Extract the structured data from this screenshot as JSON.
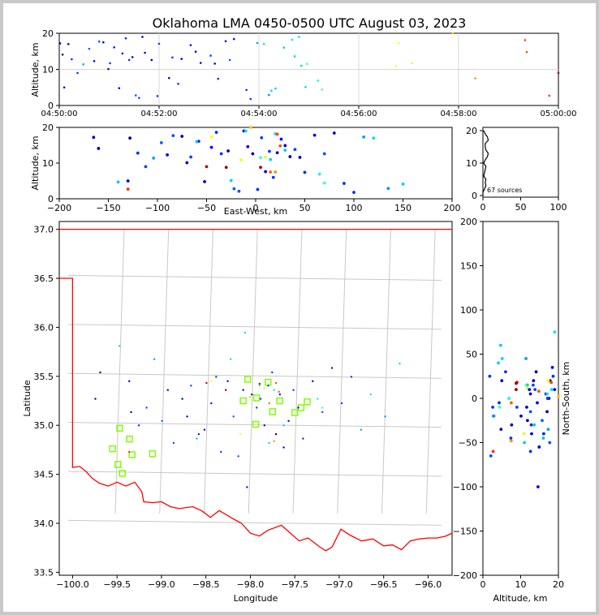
{
  "figure": {
    "title": "Oklahoma LMA 0450-0500 UTC August 03, 2023",
    "source_count_label": "67 sources"
  },
  "chart_data": [
    {
      "id": "time-altitude",
      "type": "scatter",
      "xlabel": "",
      "ylabel": "Altitude, km",
      "x_ticks": [
        "04:50:00",
        "04:52:00",
        "04:54:00",
        "04:56:00",
        "04:58:00",
        "05:00:00"
      ],
      "xlim": [
        0,
        600
      ],
      "ylim": [
        0,
        20
      ],
      "y_ticks": [
        0,
        10,
        20
      ],
      "grid": true
    },
    {
      "id": "ew-altitude",
      "type": "scatter",
      "xlabel": "East-West, km",
      "ylabel": "Altitude, km",
      "xlim": [
        -200,
        200
      ],
      "x_ticks": [
        -200,
        -150,
        -100,
        -50,
        0,
        50,
        100,
        150,
        200
      ],
      "ylim": [
        0,
        20
      ],
      "y_ticks": [
        0,
        10,
        20
      ],
      "grid": false
    },
    {
      "id": "count-altitude",
      "type": "line",
      "xlabel": "",
      "ylabel": "",
      "xlim": [
        0,
        100
      ],
      "x_ticks": [
        0,
        50,
        100
      ],
      "ylim": [
        0,
        20
      ],
      "y_ticks": [
        0,
        10,
        20
      ],
      "grid": false
    },
    {
      "id": "plan-view",
      "type": "scatter",
      "xlabel": "Longitude",
      "ylabel": "Latitude",
      "xlim": [
        -100.15,
        -95.73
      ],
      "x_ticks": [
        -100.0,
        -99.5,
        -99.0,
        -98.5,
        -98.0,
        -97.5,
        -97.0,
        -96.5,
        -96.0
      ],
      "ylim": [
        33.47,
        37.08
      ],
      "y_ticks": [
        33.5,
        34.0,
        34.5,
        35.0,
        35.5,
        36.0,
        36.5,
        37.0
      ],
      "grid": false,
      "stations": [
        [
          -99.55,
          34.76
        ],
        [
          -99.47,
          34.97
        ],
        [
          -99.49,
          34.6
        ],
        [
          -99.44,
          34.51
        ],
        [
          -99.36,
          34.86
        ],
        [
          -99.33,
          34.7
        ],
        [
          -99.1,
          34.71
        ],
        [
          -98.03,
          35.47
        ],
        [
          -98.08,
          35.25
        ],
        [
          -97.93,
          35.28
        ],
        [
          -97.94,
          35.01
        ],
        [
          -97.8,
          35.44
        ],
        [
          -97.75,
          35.14
        ],
        [
          -97.67,
          35.25
        ],
        [
          -97.5,
          35.13
        ],
        [
          -97.43,
          35.18
        ],
        [
          -97.36,
          35.24
        ]
      ]
    },
    {
      "id": "altitude-ns",
      "type": "scatter",
      "xlabel": "Altitude, km",
      "ylabel": "North-South, km",
      "xlim": [
        0,
        20
      ],
      "x_ticks": [
        0,
        10,
        20
      ],
      "ylim": [
        -200,
        200
      ],
      "y_ticks": [
        -200,
        -150,
        -100,
        -50,
        0,
        50,
        100,
        150,
        200
      ],
      "grid": false
    }
  ],
  "sources": [
    {
      "t": 1,
      "x": -165,
      "y": 0,
      "z": 17.2,
      "c": "#0000a8"
    },
    {
      "t": 4,
      "x": -160,
      "y": 30,
      "z": 14.1,
      "c": "#000088"
    },
    {
      "t": 6,
      "x": -130,
      "y": 20,
      "z": 5.0,
      "c": "#0000d0"
    },
    {
      "t": 11,
      "x": -128,
      "y": -15,
      "z": 17.0,
      "c": "#0000a8"
    },
    {
      "t": 15,
      "x": -120,
      "y": -30,
      "z": 12.8,
      "c": "#0030ff"
    },
    {
      "t": 22,
      "x": -112,
      "y": -10,
      "z": 9.0,
      "c": "#0040ff"
    },
    {
      "t": 29,
      "x": -104,
      "y": 45,
      "z": 11.4,
      "c": "#00a0ff"
    },
    {
      "t": 36,
      "x": -96,
      "y": -25,
      "z": 15.7,
      "c": "#0060ff"
    },
    {
      "t": 42,
      "x": -90,
      "y": 10,
      "z": 12.3,
      "c": "#0000d0"
    },
    {
      "t": 48,
      "x": -84,
      "y": -50,
      "z": 17.7,
      "c": "#0050ff"
    },
    {
      "t": 53,
      "x": -75,
      "y": 0,
      "z": 17.5,
      "c": "#0000b0"
    },
    {
      "t": 59,
      "x": -70,
      "y": -20,
      "z": 10.1,
      "c": "#0000c8"
    },
    {
      "t": 61,
      "x": -66,
      "y": 15,
      "z": 11.7,
      "c": "#0040ff"
    },
    {
      "t": 66,
      "x": -58,
      "y": -40,
      "z": 16.1,
      "c": "#0020e8"
    },
    {
      "t": 72,
      "x": -52,
      "y": -35,
      "z": 4.8,
      "c": "#0000d0"
    },
    {
      "t": 76,
      "x": -45,
      "y": -5,
      "z": 14.4,
      "c": "#0000ff"
    },
    {
      "t": 80,
      "x": -40,
      "y": 25,
      "z": 18.6,
      "c": "#0028ff"
    },
    {
      "t": 84,
      "x": -35,
      "y": -60,
      "z": 12.6,
      "c": "#0030ff"
    },
    {
      "t": 88,
      "x": -28,
      "y": 20,
      "z": 13.4,
      "c": "#0000d0"
    },
    {
      "t": 92,
      "x": -22,
      "y": -20,
      "z": 2.8,
      "c": "#0060ff"
    },
    {
      "t": 96,
      "x": -17,
      "y": -65,
      "z": 2.1,
      "c": "#0050ff"
    },
    {
      "t": 100,
      "x": -12,
      "y": 10,
      "z": 19.0,
      "c": "#0000e0"
    },
    {
      "t": 103,
      "x": -8,
      "y": -100,
      "z": 14.6,
      "c": "#0000ff"
    },
    {
      "t": 111,
      "x": -3,
      "y": 5,
      "z": 12.6,
      "c": "#0000b0"
    },
    {
      "t": 118,
      "x": 2,
      "y": -10,
      "z": 2.6,
      "c": "#0030ff"
    },
    {
      "t": 120,
      "x": 6,
      "y": 0,
      "z": 17.1,
      "c": "#0040ff"
    },
    {
      "t": 132,
      "x": 10,
      "y": -30,
      "z": 7.6,
      "c": "#0000c8"
    },
    {
      "t": 136,
      "x": 14,
      "y": 15,
      "z": 13.3,
      "c": "#0040ff"
    },
    {
      "t": 143,
      "x": 18,
      "y": 30,
      "z": 6.0,
      "c": "#0030ff"
    },
    {
      "t": 147,
      "x": 22,
      "y": -40,
      "z": 12.9,
      "c": "#0000d0"
    },
    {
      "t": 158,
      "x": 26,
      "y": 5,
      "z": 16.7,
      "c": "#0000ff"
    },
    {
      "t": 164,
      "x": 30,
      "y": -55,
      "z": 14.9,
      "c": "#0000d0"
    },
    {
      "t": 170,
      "x": 35,
      "y": -25,
      "z": 11.8,
      "c": "#0000c8"
    },
    {
      "t": 182,
      "x": 40,
      "y": 10,
      "z": 13.8,
      "c": "#0040ff"
    },
    {
      "t": 187,
      "x": 45,
      "y": -10,
      "z": 11.6,
      "c": "#0000b8"
    },
    {
      "t": 191,
      "x": 50,
      "y": -45,
      "z": 7.4,
      "c": "#0030ff"
    },
    {
      "t": 200,
      "x": 60,
      "y": 20,
      "z": 17.8,
      "c": "#0000e0"
    },
    {
      "t": 205,
      "x": 70,
      "y": -15,
      "z": 12.6,
      "c": "#0050ff"
    },
    {
      "t": 210,
      "x": 80,
      "y": 35,
      "z": 18.4,
      "c": "#0000e0"
    },
    {
      "t": 225,
      "x": 90,
      "y": -5,
      "z": 4.3,
      "c": "#0030ff"
    },
    {
      "t": 230,
      "x": 100,
      "y": 25,
      "z": 1.8,
      "c": "#0030ff"
    },
    {
      "t": 238,
      "x": 110,
      "y": -35,
      "z": 17.3,
      "c": "#00a0ff"
    },
    {
      "t": 246,
      "x": 120,
      "y": 5,
      "z": 17.0,
      "c": "#00e0f0"
    },
    {
      "t": 252,
      "x": 135,
      "y": -20,
      "z": 2.9,
      "c": "#0090ff"
    },
    {
      "t": 255,
      "x": 150,
      "y": 40,
      "z": 4.1,
      "c": "#00d0ff"
    },
    {
      "t": 260,
      "x": -140,
      "y": 60,
      "z": 4.7,
      "c": "#00c8ff"
    },
    {
      "t": 270,
      "x": -60,
      "y": -45,
      "z": 16.0,
      "c": "#00c0ff"
    },
    {
      "t": 280,
      "x": 20,
      "y": 10,
      "z": 18.2,
      "c": "#10e0e0"
    },
    {
      "t": 283,
      "x": 30,
      "y": -30,
      "z": 13.6,
      "c": "#00c8ff"
    },
    {
      "t": 288,
      "x": -10,
      "y": 75,
      "z": 19.0,
      "c": "#00e0ff"
    },
    {
      "t": 291,
      "x": 15,
      "y": -50,
      "z": 11.0,
      "c": "#00d0d8"
    },
    {
      "t": 296,
      "x": -25,
      "y": 45,
      "z": 5.1,
      "c": "#00d8e8"
    },
    {
      "t": 298,
      "x": 5,
      "y": 15,
      "z": 11.5,
      "c": "#30ffd0"
    },
    {
      "t": 311,
      "x": 65,
      "y": 0,
      "z": 6.9,
      "c": "#00ffd8"
    },
    {
      "t": 316,
      "x": 70,
      "y": -10,
      "z": 4.4,
      "c": "#40ffc0"
    },
    {
      "t": 408,
      "x": -45,
      "y": 20,
      "z": 17.3,
      "c": "#ffff00"
    },
    {
      "t": 405,
      "x": -15,
      "y": -40,
      "z": 10.9,
      "c": "#e8ff20"
    },
    {
      "t": 424,
      "x": 10,
      "y": 12,
      "z": 11.7,
      "c": "#d0ff30"
    },
    {
      "t": 473,
      "x": -5,
      "y": 2,
      "z": 20.0,
      "c": "#ffc000"
    },
    {
      "t": 500,
      "x": 20,
      "y": -48,
      "z": 7.5,
      "c": "#ff9000"
    },
    {
      "t": 560,
      "x": 22,
      "y": 18,
      "z": 18.1,
      "c": "#ff4000"
    },
    {
      "t": 562,
      "x": 25,
      "y": 8,
      "z": 14.8,
      "c": "#ff5000"
    },
    {
      "t": 589,
      "x": -130,
      "y": -60,
      "z": 2.7,
      "c": "#ff3000"
    },
    {
      "t": 600,
      "x": -50,
      "y": 18,
      "z": 9.0,
      "c": "#c00000"
    },
    {
      "t": 602,
      "x": 5,
      "y": 17,
      "z": 8.8,
      "c": "#a00000"
    },
    {
      "t": 620,
      "x": -30,
      "y": 10,
      "z": 8.8,
      "c": "#900000"
    },
    {
      "t": 640,
      "x": 15,
      "y": -5,
      "z": 7.5,
      "c": "#ff6000"
    }
  ],
  "colors": {
    "border_red": "#ff0000",
    "county_lines": "#c8c8c8",
    "station_green": "#80ff00",
    "frame_gray": "#c8c8c8"
  }
}
